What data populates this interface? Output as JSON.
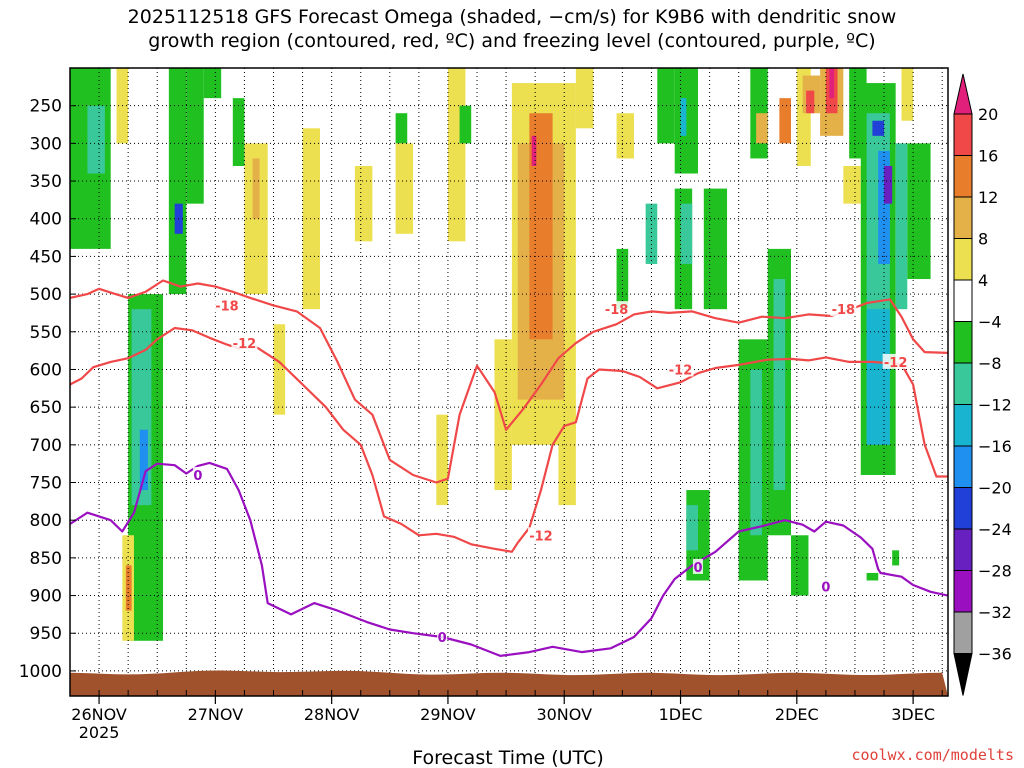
{
  "chart_data": {
    "type": "heatmap",
    "title_line1": "2025112518 GFS Forecast Omega (shaded, −cm/s) for K9B6 with dendritic snow",
    "title_line2": "growth region (contoured, red, ºC) and freezing level (contoured, purple, ºC)",
    "xlabel": "Forecast Time (UTC)",
    "ylabel": "",
    "watermark": "coolwx.com/modelts",
    "x_ticks": [
      {
        "label": "26NOV",
        "sub": "2025",
        "t": 0
      },
      {
        "label": "27NOV",
        "sub": "",
        "t": 1
      },
      {
        "label": "28NOV",
        "sub": "",
        "t": 2
      },
      {
        "label": "29NOV",
        "sub": "",
        "t": 3
      },
      {
        "label": "30NOV",
        "sub": "",
        "t": 4
      },
      {
        "label": "1DEC",
        "sub": "",
        "t": 5
      },
      {
        "label": "2DEC",
        "sub": "",
        "t": 6
      },
      {
        "label": "3DEC",
        "sub": "",
        "t": 7
      }
    ],
    "xlim": [
      -0.25,
      7.3
    ],
    "y_ticks": [
      250,
      300,
      350,
      400,
      450,
      500,
      550,
      600,
      650,
      700,
      750,
      800,
      850,
      900,
      950,
      1000
    ],
    "ylim": [
      200,
      1020
    ],
    "colorbar": {
      "labels": [
        "20",
        "16",
        "12",
        "8",
        "4",
        "−4",
        "−8",
        "−12",
        "−16",
        "−20",
        "−24",
        "−28",
        "−32",
        "−36"
      ],
      "colors": [
        "#e0207a",
        "#f04848",
        "#e87e2c",
        "#e4b048",
        "#ece050",
        "#ffffff",
        "#20c020",
        "#38c89a",
        "#18b4d0",
        "#2090f0",
        "#2040d8",
        "#6820c0",
        "#9a10c0",
        "#a0a0a0",
        "#000000"
      ]
    },
    "omega_regions": [
      {
        "t0": -0.25,
        "t1": 0.1,
        "p0": 200,
        "p1": 440,
        "c": "#20c020"
      },
      {
        "t0": -0.1,
        "t1": 0.05,
        "p0": 250,
        "p1": 340,
        "c": "#38c89a"
      },
      {
        "t0": 0.15,
        "t1": 0.25,
        "p0": 200,
        "p1": 300,
        "c": "#ece050"
      },
      {
        "t0": 0.25,
        "t1": 0.55,
        "p0": 500,
        "p1": 960,
        "c": "#20c020"
      },
      {
        "t0": 0.28,
        "t1": 0.45,
        "p0": 520,
        "p1": 780,
        "c": "#38c89a"
      },
      {
        "t0": 0.35,
        "t1": 0.42,
        "p0": 680,
        "p1": 760,
        "c": "#2090f0"
      },
      {
        "t0": 0.2,
        "t1": 0.3,
        "p0": 820,
        "p1": 960,
        "c": "#ece050"
      },
      {
        "t0": 0.23,
        "t1": 0.28,
        "p0": 860,
        "p1": 920,
        "c": "#e87e2c"
      },
      {
        "t0": 0.6,
        "t1": 0.75,
        "p0": 200,
        "p1": 500,
        "c": "#20c020"
      },
      {
        "t0": 0.65,
        "t1": 0.72,
        "p0": 380,
        "p1": 420,
        "c": "#2040d8"
      },
      {
        "t0": 0.75,
        "t1": 0.9,
        "p0": 200,
        "p1": 380,
        "c": "#20c020"
      },
      {
        "t0": 0.9,
        "t1": 1.05,
        "p0": 200,
        "p1": 240,
        "c": "#20c020"
      },
      {
        "t0": 1.15,
        "t1": 1.25,
        "p0": 240,
        "p1": 330,
        "c": "#20c020"
      },
      {
        "t0": 1.25,
        "t1": 1.45,
        "p0": 300,
        "p1": 500,
        "c": "#ece050"
      },
      {
        "t0": 1.32,
        "t1": 1.38,
        "p0": 320,
        "p1": 400,
        "c": "#e4b048"
      },
      {
        "t0": 1.5,
        "t1": 1.6,
        "p0": 540,
        "p1": 660,
        "c": "#ece050"
      },
      {
        "t0": 1.75,
        "t1": 1.9,
        "p0": 280,
        "p1": 520,
        "c": "#ece050"
      },
      {
        "t0": 2.2,
        "t1": 2.35,
        "p0": 330,
        "p1": 430,
        "c": "#ece050"
      },
      {
        "t0": 2.55,
        "t1": 2.65,
        "p0": 260,
        "p1": 300,
        "c": "#20c020"
      },
      {
        "t0": 2.55,
        "t1": 2.7,
        "p0": 300,
        "p1": 420,
        "c": "#ece050"
      },
      {
        "t0": 2.9,
        "t1": 3.0,
        "p0": 660,
        "p1": 780,
        "c": "#ece050"
      },
      {
        "t0": 3.0,
        "t1": 3.15,
        "p0": 200,
        "p1": 430,
        "c": "#ece050"
      },
      {
        "t0": 3.1,
        "t1": 3.2,
        "p0": 250,
        "p1": 300,
        "c": "#20c020"
      },
      {
        "t0": 3.4,
        "t1": 3.55,
        "p0": 560,
        "p1": 760,
        "c": "#ece050"
      },
      {
        "t0": 3.55,
        "t1": 4.1,
        "p0": 220,
        "p1": 700,
        "c": "#ece050"
      },
      {
        "t0": 3.6,
        "t1": 4.0,
        "p0": 300,
        "p1": 640,
        "c": "#e4b048"
      },
      {
        "t0": 3.7,
        "t1": 3.9,
        "p0": 260,
        "p1": 560,
        "c": "#e87e2c"
      },
      {
        "t0": 3.72,
        "t1": 3.76,
        "p0": 290,
        "p1": 330,
        "c": "#e0207a"
      },
      {
        "t0": 3.95,
        "t1": 4.1,
        "p0": 640,
        "p1": 780,
        "c": "#ece050"
      },
      {
        "t0": 4.1,
        "t1": 4.25,
        "p0": 200,
        "p1": 280,
        "c": "#ece050"
      },
      {
        "t0": 4.45,
        "t1": 4.55,
        "p0": 440,
        "p1": 520,
        "c": "#20c020"
      },
      {
        "t0": 4.45,
        "t1": 4.6,
        "p0": 260,
        "p1": 320,
        "c": "#ece050"
      },
      {
        "t0": 4.7,
        "t1": 4.8,
        "p0": 380,
        "p1": 460,
        "c": "#38c89a"
      },
      {
        "t0": 4.8,
        "t1": 4.95,
        "p0": 200,
        "p1": 300,
        "c": "#20c020"
      },
      {
        "t0": 4.95,
        "t1": 5.15,
        "p0": 200,
        "p1": 340,
        "c": "#20c020"
      },
      {
        "t0": 5.0,
        "t1": 5.05,
        "p0": 240,
        "p1": 290,
        "c": "#18b4d0"
      },
      {
        "t0": 4.95,
        "t1": 5.1,
        "p0": 360,
        "p1": 520,
        "c": "#20c020"
      },
      {
        "t0": 5.0,
        "t1": 5.1,
        "p0": 380,
        "p1": 460,
        "c": "#38c89a"
      },
      {
        "t0": 5.05,
        "t1": 5.25,
        "p0": 760,
        "p1": 880,
        "c": "#20c020"
      },
      {
        "t0": 5.05,
        "t1": 5.15,
        "p0": 780,
        "p1": 840,
        "c": "#38c89a"
      },
      {
        "t0": 5.2,
        "t1": 5.4,
        "p0": 360,
        "p1": 520,
        "c": "#20c020"
      },
      {
        "t0": 5.5,
        "t1": 5.75,
        "p0": 560,
        "p1": 880,
        "c": "#20c020"
      },
      {
        "t0": 5.6,
        "t1": 5.7,
        "p0": 600,
        "p1": 820,
        "c": "#38c89a"
      },
      {
        "t0": 5.6,
        "t1": 5.75,
        "p0": 200,
        "p1": 320,
        "c": "#20c020"
      },
      {
        "t0": 5.75,
        "t1": 5.95,
        "p0": 440,
        "p1": 820,
        "c": "#20c020"
      },
      {
        "t0": 5.8,
        "t1": 5.9,
        "p0": 480,
        "p1": 760,
        "c": "#38c89a"
      },
      {
        "t0": 5.65,
        "t1": 5.75,
        "p0": 260,
        "p1": 300,
        "c": "#e4b048"
      },
      {
        "t0": 5.85,
        "t1": 5.95,
        "p0": 240,
        "p1": 300,
        "c": "#e87e2c"
      },
      {
        "t0": 5.95,
        "t1": 6.1,
        "p0": 820,
        "p1": 900,
        "c": "#20c020"
      },
      {
        "t0": 6.0,
        "t1": 6.12,
        "p0": 200,
        "p1": 330,
        "c": "#ece050"
      },
      {
        "t0": 6.05,
        "t1": 6.2,
        "p0": 210,
        "p1": 260,
        "c": "#e4b048"
      },
      {
        "t0": 6.08,
        "t1": 6.15,
        "p0": 230,
        "p1": 260,
        "c": "#f04848"
      },
      {
        "t0": 6.2,
        "t1": 6.4,
        "p0": 200,
        "p1": 290,
        "c": "#e4b048"
      },
      {
        "t0": 6.25,
        "t1": 6.35,
        "p0": 200,
        "p1": 260,
        "c": "#f04848"
      },
      {
        "t0": 6.28,
        "t1": 6.32,
        "p0": 200,
        "p1": 240,
        "c": "#e0207a"
      },
      {
        "t0": 6.45,
        "t1": 6.6,
        "p0": 200,
        "p1": 320,
        "c": "#20c020"
      },
      {
        "t0": 6.4,
        "t1": 6.55,
        "p0": 330,
        "p1": 380,
        "c": "#ece050"
      },
      {
        "t0": 6.55,
        "t1": 6.85,
        "p0": 220,
        "p1": 740,
        "c": "#20c020"
      },
      {
        "t0": 6.6,
        "t1": 6.8,
        "p0": 260,
        "p1": 700,
        "c": "#38c89a"
      },
      {
        "t0": 6.65,
        "t1": 6.75,
        "p0": 270,
        "p1": 290,
        "c": "#2040d8"
      },
      {
        "t0": 6.7,
        "t1": 6.8,
        "p0": 310,
        "p1": 460,
        "c": "#2090f0"
      },
      {
        "t0": 6.75,
        "t1": 6.82,
        "p0": 330,
        "p1": 380,
        "c": "#6820c0"
      },
      {
        "t0": 6.85,
        "t1": 6.95,
        "p0": 300,
        "p1": 520,
        "c": "#38c89a"
      },
      {
        "t0": 6.9,
        "t1": 7.0,
        "p0": 200,
        "p1": 270,
        "c": "#ece050"
      },
      {
        "t0": 6.95,
        "t1": 7.15,
        "p0": 300,
        "p1": 480,
        "c": "#20c020"
      },
      {
        "t0": 6.6,
        "t1": 6.8,
        "p0": 520,
        "p1": 700,
        "c": "#18b4d0"
      },
      {
        "t0": 6.82,
        "t1": 6.88,
        "p0": 840,
        "p1": 860,
        "c": "#20c020"
      },
      {
        "t0": 6.6,
        "t1": 6.7,
        "p0": 870,
        "p1": 880,
        "c": "#20c020"
      }
    ],
    "contours": [
      {
        "name": "dgz-minus18",
        "color": "#f04848",
        "label": "-18",
        "label_t": 1.1,
        "label_p": 515,
        "label2_t": 4.45,
        "label2_p": 520,
        "label3_t": 6.4,
        "label3_p": 520,
        "points": [
          [
            -0.25,
            505
          ],
          [
            -0.1,
            500
          ],
          [
            0.0,
            493
          ],
          [
            0.1,
            498
          ],
          [
            0.25,
            505
          ],
          [
            0.4,
            497
          ],
          [
            0.55,
            482
          ],
          [
            0.7,
            490
          ],
          [
            0.85,
            486
          ],
          [
            1.0,
            490
          ],
          [
            1.15,
            497
          ],
          [
            1.3,
            505
          ],
          [
            1.5,
            515
          ],
          [
            1.7,
            523
          ],
          [
            1.9,
            545
          ],
          [
            2.05,
            590
          ],
          [
            2.2,
            640
          ],
          [
            2.35,
            660
          ],
          [
            2.5,
            720
          ],
          [
            2.7,
            740
          ],
          [
            2.9,
            750
          ],
          [
            3.0,
            745
          ],
          [
            3.1,
            660
          ],
          [
            3.25,
            595
          ],
          [
            3.4,
            630
          ],
          [
            3.5,
            680
          ],
          [
            3.65,
            652
          ],
          [
            3.8,
            620
          ],
          [
            3.95,
            585
          ],
          [
            4.1,
            565
          ],
          [
            4.25,
            550
          ],
          [
            4.45,
            540
          ],
          [
            4.6,
            527
          ],
          [
            4.75,
            523
          ],
          [
            4.9,
            525
          ],
          [
            5.1,
            523
          ],
          [
            5.3,
            532
          ],
          [
            5.5,
            538
          ],
          [
            5.7,
            530
          ],
          [
            5.9,
            532
          ],
          [
            6.1,
            527
          ],
          [
            6.3,
            529
          ],
          [
            6.45,
            521
          ],
          [
            6.6,
            512
          ],
          [
            6.8,
            507
          ],
          [
            6.9,
            530
          ],
          [
            7.0,
            560
          ],
          [
            7.1,
            577
          ],
          [
            7.3,
            578
          ]
        ]
      },
      {
        "name": "dgz-minus12",
        "color": "#f04848",
        "label": "-12",
        "label_t": 1.25,
        "label_p": 565,
        "label2_t": 3.8,
        "label2_p": 820,
        "label3_t": 5.0,
        "label3_p": 600,
        "label4_t": 6.85,
        "label4_p": 590,
        "points": [
          [
            -0.25,
            620
          ],
          [
            -0.15,
            612
          ],
          [
            -0.05,
            597
          ],
          [
            0.1,
            590
          ],
          [
            0.25,
            585
          ],
          [
            0.4,
            574
          ],
          [
            0.5,
            560
          ],
          [
            0.65,
            545
          ],
          [
            0.8,
            548
          ],
          [
            0.95,
            558
          ],
          [
            1.1,
            567
          ],
          [
            1.2,
            572
          ],
          [
            1.35,
            570
          ],
          [
            1.55,
            590
          ],
          [
            1.75,
            620
          ],
          [
            1.95,
            650
          ],
          [
            2.1,
            680
          ],
          [
            2.25,
            700
          ],
          [
            2.35,
            740
          ],
          [
            2.45,
            795
          ],
          [
            2.6,
            805
          ],
          [
            2.75,
            820
          ],
          [
            2.9,
            818
          ],
          [
            3.05,
            822
          ],
          [
            3.2,
            832
          ],
          [
            3.4,
            838
          ],
          [
            3.55,
            842
          ],
          [
            3.6,
            830
          ],
          [
            3.7,
            810
          ],
          [
            3.8,
            760
          ],
          [
            3.9,
            700
          ],
          [
            4.0,
            675
          ],
          [
            4.1,
            670
          ],
          [
            4.2,
            612
          ],
          [
            4.3,
            600
          ],
          [
            4.5,
            602
          ],
          [
            4.65,
            610
          ],
          [
            4.8,
            625
          ],
          [
            5.0,
            617
          ],
          [
            5.15,
            605
          ],
          [
            5.3,
            598
          ],
          [
            5.5,
            594
          ],
          [
            5.75,
            587
          ],
          [
            5.95,
            586
          ],
          [
            6.1,
            588
          ],
          [
            6.25,
            584
          ],
          [
            6.45,
            590
          ],
          [
            6.65,
            590
          ],
          [
            6.9,
            593
          ],
          [
            7.0,
            620
          ],
          [
            7.1,
            700
          ],
          [
            7.2,
            742
          ],
          [
            7.3,
            742
          ]
        ]
      },
      {
        "name": "freezing-level-0",
        "color": "#9a10c0",
        "label": "0",
        "label_t": 0.85,
        "label_p": 740,
        "label2_t": 2.95,
        "label2_p": 955,
        "label3_t": 5.15,
        "label3_p": 862,
        "label4_t": 6.25,
        "label4_p": 888,
        "points": [
          [
            -0.25,
            805
          ],
          [
            -0.1,
            790
          ],
          [
            0.0,
            795
          ],
          [
            0.1,
            800
          ],
          [
            0.2,
            815
          ],
          [
            0.3,
            790
          ],
          [
            0.4,
            735
          ],
          [
            0.5,
            725
          ],
          [
            0.65,
            727
          ],
          [
            0.75,
            738
          ],
          [
            0.85,
            728
          ],
          [
            0.95,
            724
          ],
          [
            1.1,
            732
          ],
          [
            1.2,
            760
          ],
          [
            1.3,
            800
          ],
          [
            1.4,
            860
          ],
          [
            1.45,
            910
          ],
          [
            1.65,
            925
          ],
          [
            1.85,
            910
          ],
          [
            2.05,
            920
          ],
          [
            2.3,
            935
          ],
          [
            2.5,
            945
          ],
          [
            2.7,
            950
          ],
          [
            2.95,
            955
          ],
          [
            3.2,
            965
          ],
          [
            3.45,
            980
          ],
          [
            3.7,
            975
          ],
          [
            3.9,
            968
          ],
          [
            4.15,
            975
          ],
          [
            4.4,
            970
          ],
          [
            4.6,
            955
          ],
          [
            4.75,
            930
          ],
          [
            4.85,
            900
          ],
          [
            4.95,
            878
          ],
          [
            5.1,
            860
          ],
          [
            5.3,
            842
          ],
          [
            5.5,
            815
          ],
          [
            5.7,
            808
          ],
          [
            5.9,
            800
          ],
          [
            6.05,
            806
          ],
          [
            6.15,
            815
          ],
          [
            6.25,
            802
          ],
          [
            6.4,
            807
          ],
          [
            6.55,
            823
          ],
          [
            6.65,
            838
          ],
          [
            6.7,
            865
          ],
          [
            6.72,
            870
          ],
          [
            6.9,
            875
          ],
          [
            7.0,
            886
          ],
          [
            7.15,
            895
          ],
          [
            7.3,
            900
          ]
        ]
      }
    ]
  }
}
